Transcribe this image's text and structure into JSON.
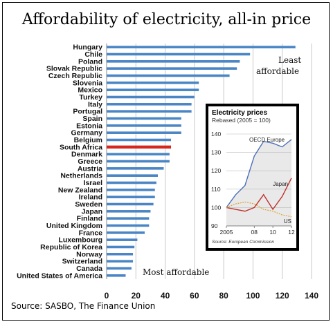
{
  "title": "Affordability of electricity, all-in price",
  "source": "Source: SASBO, The Finance Union",
  "annotations": {
    "least": [
      "Least",
      "affordable"
    ],
    "most": "Most affordable"
  },
  "colors": {
    "bar": "#4a86c5",
    "highlight": "#d7261e",
    "inset_oecd": "#4a6fb8",
    "inset_japan": "#c0302a",
    "inset_us": "#e0a030"
  },
  "chart_data": [
    {
      "type": "bar",
      "orientation": "horizontal",
      "title": "Affordability of electricity, all-in price",
      "categories": [
        "Hungary",
        "Chile",
        "Poland",
        "Slovak Republic",
        "Czech Republic",
        "Slovenia",
        "Mexico",
        "Turkey",
        "Italy",
        "Portugal",
        "Spain",
        "Estonia",
        "Germany",
        "Belgium",
        "South Africa",
        "Denmark",
        "Greece",
        "Austria",
        "Netherlands",
        "Israel",
        "New Zealand",
        "Ireland",
        "Sweden",
        "Japan",
        "Finland",
        "United Kingdom",
        "France",
        "Luxembourg",
        "Republic of Korea",
        "Norway",
        "Switzerland",
        "Canada",
        "United States of America"
      ],
      "values": [
        129,
        98,
        91,
        89,
        84,
        63,
        63,
        60,
        58,
        58,
        51,
        51,
        51,
        44,
        44,
        43,
        43,
        39,
        35,
        34,
        33,
        33,
        32,
        30,
        29,
        29,
        26,
        21,
        19,
        18,
        18,
        17,
        13
      ],
      "highlight": "South Africa",
      "xlim": [
        0,
        140
      ],
      "xticks": [
        0,
        20,
        40,
        60,
        80,
        100,
        120,
        140
      ],
      "grid": true
    },
    {
      "type": "line",
      "title": "Electricity prices",
      "subtitle": "Rebased (2005 = 100)",
      "x": [
        2005,
        2006,
        2007,
        2008,
        2009,
        2010,
        2011,
        2012
      ],
      "xticks": [
        "2005",
        "08",
        "10",
        "12"
      ],
      "ylim": [
        90,
        140
      ],
      "yticks": [
        90,
        100,
        110,
        120,
        130,
        140
      ],
      "series": [
        {
          "name": "OECD Europe",
          "values": [
            100,
            107,
            112,
            128,
            136,
            135,
            133,
            137
          ]
        },
        {
          "name": "Japan",
          "values": [
            100,
            99,
            98,
            100,
            107,
            99,
            106,
            116
          ]
        },
        {
          "name": "US",
          "values": [
            100,
            102,
            103,
            102,
            99,
            98,
            96,
            95
          ]
        }
      ],
      "source": "Source: European Commission"
    }
  ]
}
